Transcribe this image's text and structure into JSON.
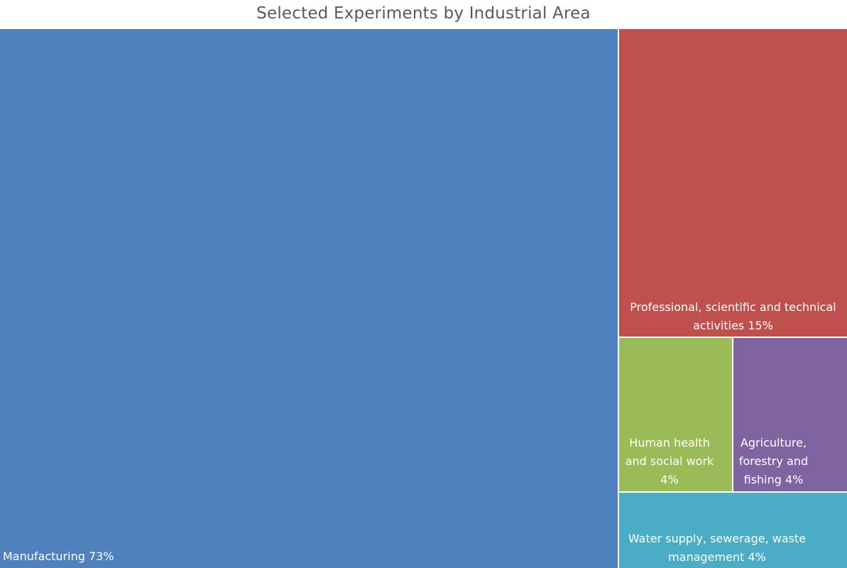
{
  "chart_data": {
    "type": "treemap",
    "title": "Selected Experiments by Industrial Area",
    "unit": "%",
    "items": [
      {
        "name": "Manufacturing",
        "value": 73,
        "color": "#4F81BD",
        "label": "Manufacturing 73%"
      },
      {
        "name": "Professional, scientific and technical activities",
        "value": 15,
        "color": "#C0504D",
        "label": "Professional, scientific and technical activities 15%"
      },
      {
        "name": "Human health and social work",
        "value": 4,
        "color": "#9BBB59",
        "label": "Human health and social work 4%"
      },
      {
        "name": "Agriculture, forestry and fishing",
        "value": 4,
        "color": "#8064A2",
        "label": "Agriculture, forestry and fishing 4%"
      },
      {
        "name": "Water supply, sewerage, waste management",
        "value": 4,
        "color": "#4BACC6",
        "label": "Water supply, sewerage, waste management 4%"
      }
    ]
  }
}
